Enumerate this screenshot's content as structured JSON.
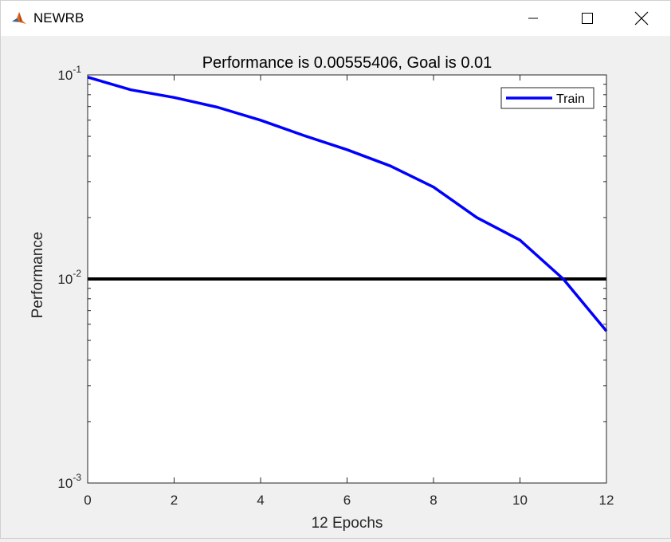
{
  "window": {
    "title": "NEWRB",
    "icon": "matlab-icon",
    "controls": [
      "minimize-icon",
      "maximize-icon",
      "close-icon"
    ]
  },
  "chart_data": {
    "type": "line",
    "title": "Performance is 0.00555406, Goal is 0.01",
    "xlabel": "12 Epochs",
    "ylabel": "Performance",
    "xlim": [
      0,
      12
    ],
    "ylim": [
      0.001,
      0.1
    ],
    "yscale": "log",
    "x_ticks": [
      "0",
      "2",
      "4",
      "6",
      "8",
      "10",
      "12"
    ],
    "y_ticks": [
      {
        "value": 0.1,
        "base": "10",
        "exp": "-1"
      },
      {
        "value": 0.01,
        "base": "10",
        "exp": "-2"
      },
      {
        "value": 0.001,
        "base": "10",
        "exp": "-3"
      }
    ],
    "legend": {
      "location": "top-right",
      "entries": [
        "Train"
      ]
    },
    "series": [
      {
        "name": "Train",
        "color": "#0000ff",
        "x": [
          0,
          1,
          2,
          3,
          4,
          5,
          6,
          7,
          8,
          9,
          10,
          11,
          12
        ],
        "y": [
          0.0975,
          0.0845,
          0.0775,
          0.0695,
          0.06,
          0.0505,
          0.043,
          0.0358,
          0.0282,
          0.02,
          0.0155,
          0.01,
          0.00555406
        ]
      }
    ],
    "goal": {
      "value": 0.01,
      "color": "#000000"
    }
  }
}
